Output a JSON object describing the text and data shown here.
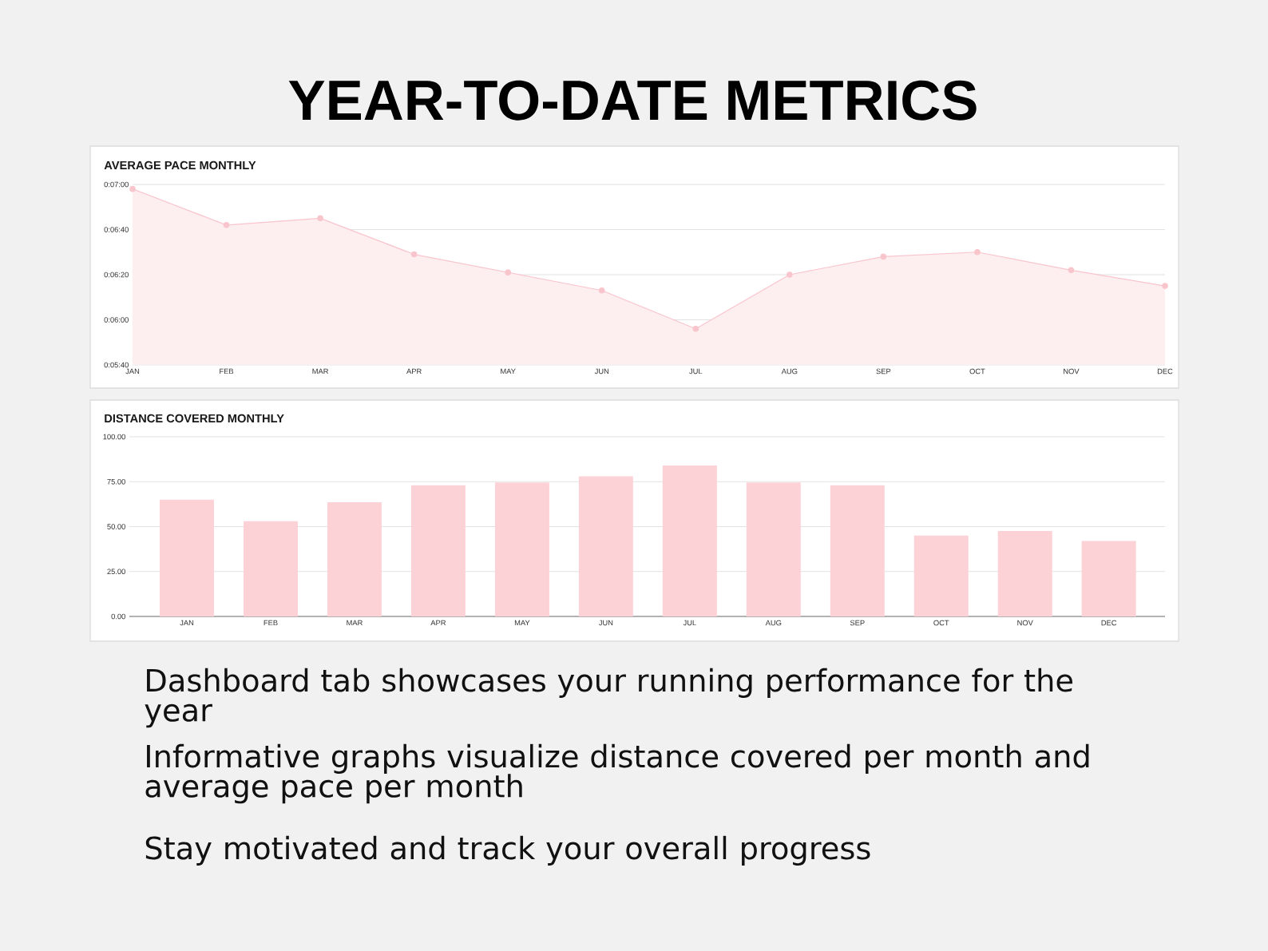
{
  "chart_data": [
    {
      "type": "other",
      "title": "YEAR-TO-DATE METRICS"
    },
    {
      "type": "area",
      "title": "AVERAGE PACE MONTHLY",
      "categories": [
        "JAN",
        "FEB",
        "MAR",
        "APR",
        "MAY",
        "JUN",
        "JUL",
        "AUG",
        "SEP",
        "OCT",
        "NOV",
        "DEC"
      ],
      "values": [
        418,
        402,
        405,
        389,
        381,
        373,
        356,
        380,
        388,
        390,
        382,
        375
      ],
      "color": "#f9c5cc",
      "ylim": [
        340,
        420
      ],
      "yticks": [
        {
          "value": 340,
          "label": "0:05:40"
        },
        {
          "value": 360,
          "label": "0:06:00"
        },
        {
          "value": 380,
          "label": "0:06:20"
        },
        {
          "value": 400,
          "label": "0:06:40"
        },
        {
          "value": 420,
          "label": "0:07:00"
        }
      ],
      "grid": "y",
      "marker": "circle"
    },
    {
      "type": "bar",
      "title": "DISTANCE COVERED MONTHLY",
      "categories": [
        "JAN",
        "FEB",
        "MAR",
        "APR",
        "MAY",
        "JUN",
        "JUL",
        "AUG",
        "SEP",
        "OCT",
        "NOV",
        "DEC"
      ],
      "values": [
        65,
        53,
        63.5,
        73,
        74.5,
        78,
        84,
        74.5,
        73,
        45,
        47.5,
        42
      ],
      "color": "#fdd2d7",
      "ylim": [
        0,
        100
      ],
      "yticks": [
        {
          "value": 0,
          "label": "0.00"
        },
        {
          "value": 25,
          "label": "25.00"
        },
        {
          "value": 50,
          "label": "50.00"
        },
        {
          "value": 75,
          "label": "75.00"
        },
        {
          "value": 100,
          "label": "100.00"
        }
      ],
      "grid": "y"
    },
    {
      "type": "other",
      "annotations": [
        "Dashboard tab showcases your running performance for the year",
        "Informative graphs visualize distance covered per month and average pace per month",
        "Stay motivated and track your overall progress"
      ]
    }
  ]
}
